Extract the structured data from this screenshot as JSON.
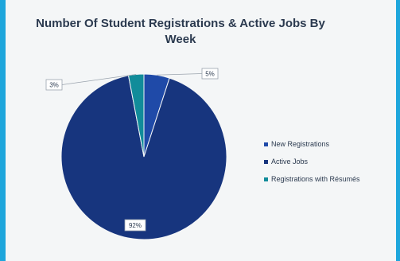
{
  "chart_data": {
    "type": "pie",
    "title": "Number Of Student Registrations & Active Jobs By Week",
    "slices": [
      {
        "name": "New Registrations",
        "value": 5,
        "label": "5%",
        "color": "#1f4aa8"
      },
      {
        "name": "Active Jobs",
        "value": 92,
        "label": "92%",
        "color": "#17357e"
      },
      {
        "name": "Registrations with Résumés",
        "value": 3,
        "label": "3%",
        "color": "#118c9a"
      }
    ],
    "legend": "right"
  }
}
